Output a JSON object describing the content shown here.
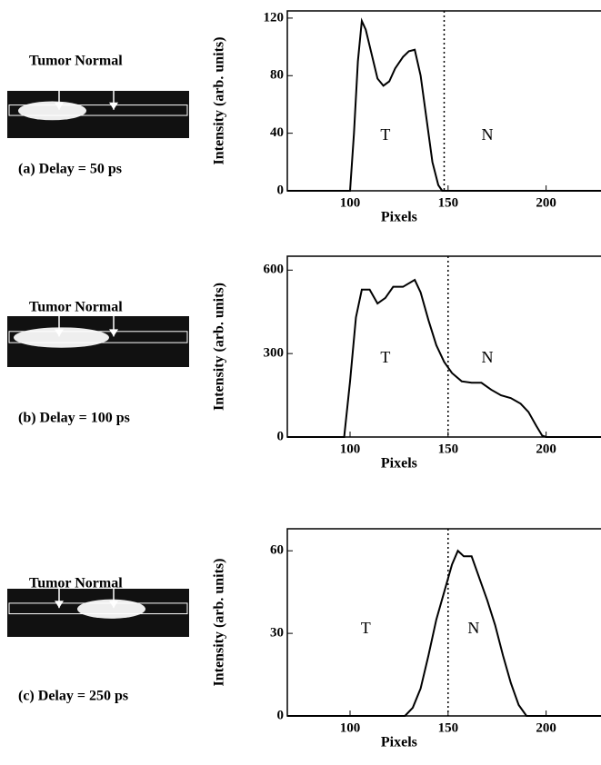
{
  "chart_data": [
    {
      "type": "line",
      "image_label": "Tumor Normal",
      "caption": "(a) Delay = 50 ps",
      "xlabel": "Pixels",
      "ylabel": "Intensity (arb. units)",
      "annotations": [
        "T",
        "N"
      ],
      "vline": 148,
      "color": "#000000",
      "xlim": [
        68,
        228
      ],
      "xticks": [
        100,
        150,
        200
      ],
      "ylim": [
        0,
        125
      ],
      "yticks": [
        0,
        40,
        80,
        120
      ],
      "x": [
        68,
        100,
        102,
        104,
        106,
        108,
        111,
        114,
        117,
        120,
        123,
        127,
        130,
        133,
        136,
        139,
        142,
        145,
        147,
        228
      ],
      "values": [
        0,
        0,
        40,
        90,
        118,
        112,
        95,
        78,
        73,
        76,
        85,
        93,
        97,
        98,
        80,
        50,
        20,
        4,
        0,
        0
      ]
    },
    {
      "type": "line",
      "image_label": "Tumor Normal",
      "caption": "(b) Delay = 100 ps",
      "xlabel": "Pixels",
      "ylabel": "Intensity (arb. units)",
      "annotations": [
        "T",
        "N"
      ],
      "vline": 150,
      "color": "#000000",
      "xlim": [
        68,
        228
      ],
      "xticks": [
        100,
        150,
        200
      ],
      "ylim": [
        0,
        650
      ],
      "yticks": [
        0,
        300,
        600
      ],
      "x": [
        68,
        97,
        100,
        103,
        106,
        110,
        114,
        118,
        122,
        127,
        133,
        136,
        140,
        144,
        148,
        152,
        157,
        162,
        167,
        172,
        177,
        182,
        187,
        191,
        195,
        198,
        200,
        228
      ],
      "values": [
        0,
        0,
        200,
        430,
        530,
        530,
        480,
        500,
        540,
        540,
        565,
        520,
        420,
        330,
        270,
        230,
        200,
        195,
        195,
        170,
        150,
        140,
        120,
        90,
        40,
        5,
        0,
        0
      ]
    },
    {
      "type": "line",
      "image_label": "Tumor Normal",
      "caption": "(c) Delay = 250 ps",
      "xlabel": "Pixels",
      "ylabel": "Intensity (arb. units)",
      "annotations": [
        "T",
        "N"
      ],
      "vline": 150,
      "color": "#000000",
      "xlim": [
        68,
        228
      ],
      "xticks": [
        100,
        150,
        200
      ],
      "ylim": [
        0,
        68
      ],
      "yticks": [
        0,
        30,
        60
      ],
      "x": [
        68,
        128,
        132,
        136,
        140,
        144,
        148,
        152,
        155,
        158,
        162,
        166,
        170,
        174,
        178,
        182,
        186,
        190,
        228
      ],
      "values": [
        0,
        0,
        3,
        10,
        22,
        35,
        45,
        55,
        60,
        58,
        58,
        50,
        42,
        33,
        22,
        12,
        4,
        0,
        0
      ]
    }
  ]
}
